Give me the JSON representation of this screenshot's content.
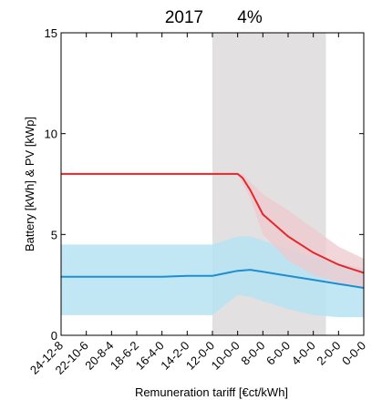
{
  "chart_data": {
    "type": "area",
    "title_year": "2017",
    "title_rate": "4%",
    "xlabel": "Remuneration tariff [€ct/kWh]",
    "ylabel": "Battery [kWh] & PV [kWp]",
    "categories": [
      "24-12-8",
      "22-10-6",
      "20-8-4",
      "18-6-2",
      "16-4-0",
      "14-2-0",
      "12-0-0",
      "10-0-0",
      "8-0-0",
      "6-0-0",
      "4-0-0",
      "2-0-0",
      "0-0-0"
    ],
    "ylim": [
      0,
      15
    ],
    "yticks": [
      0,
      5,
      10,
      15
    ],
    "shaded_region": {
      "from_index": 6,
      "to_index": 10.5,
      "color": "#e3e0e1"
    },
    "colors": {
      "pv": "#e5262b",
      "pv_band": "#eec9cd",
      "battery": "#1d8fd0",
      "battery_band": "#b7e3f2",
      "overlap_band": "#a6bcc1"
    },
    "series": [
      {
        "key": "pv",
        "x": [
          0,
          1,
          2,
          3,
          4,
          5,
          6,
          7,
          7.2,
          7.5,
          8,
          9,
          10,
          11,
          12
        ],
        "values": [
          8,
          8,
          8,
          8,
          8,
          8,
          8,
          8,
          7.8,
          7.2,
          6.0,
          4.9,
          4.1,
          3.5,
          3.1
        ],
        "lower": [
          8,
          8,
          8,
          8,
          8,
          8,
          8,
          8,
          7.5,
          6.8,
          5.0,
          3.7,
          3.0,
          2.6,
          2.3
        ],
        "upper": [
          8,
          8,
          8,
          8,
          8,
          8,
          8,
          8,
          8.0,
          7.6,
          7.0,
          6.2,
          5.3,
          4.4,
          3.8
        ]
      },
      {
        "key": "battery",
        "x": [
          0,
          1,
          2,
          3,
          4,
          5,
          6,
          7,
          7.5,
          8,
          9,
          10,
          11,
          12
        ],
        "values": [
          2.9,
          2.9,
          2.9,
          2.9,
          2.9,
          2.95,
          2.95,
          3.2,
          3.25,
          3.15,
          2.95,
          2.75,
          2.55,
          2.35
        ],
        "lower": [
          1.0,
          1.0,
          1.0,
          1.0,
          1.0,
          1.0,
          1.0,
          2.0,
          1.9,
          1.7,
          1.3,
          1.0,
          0.9,
          0.9
        ],
        "upper": [
          4.5,
          4.5,
          4.5,
          4.5,
          4.5,
          4.5,
          4.5,
          4.9,
          4.9,
          4.7,
          4.3,
          3.9,
          3.6,
          3.3
        ]
      }
    ]
  }
}
